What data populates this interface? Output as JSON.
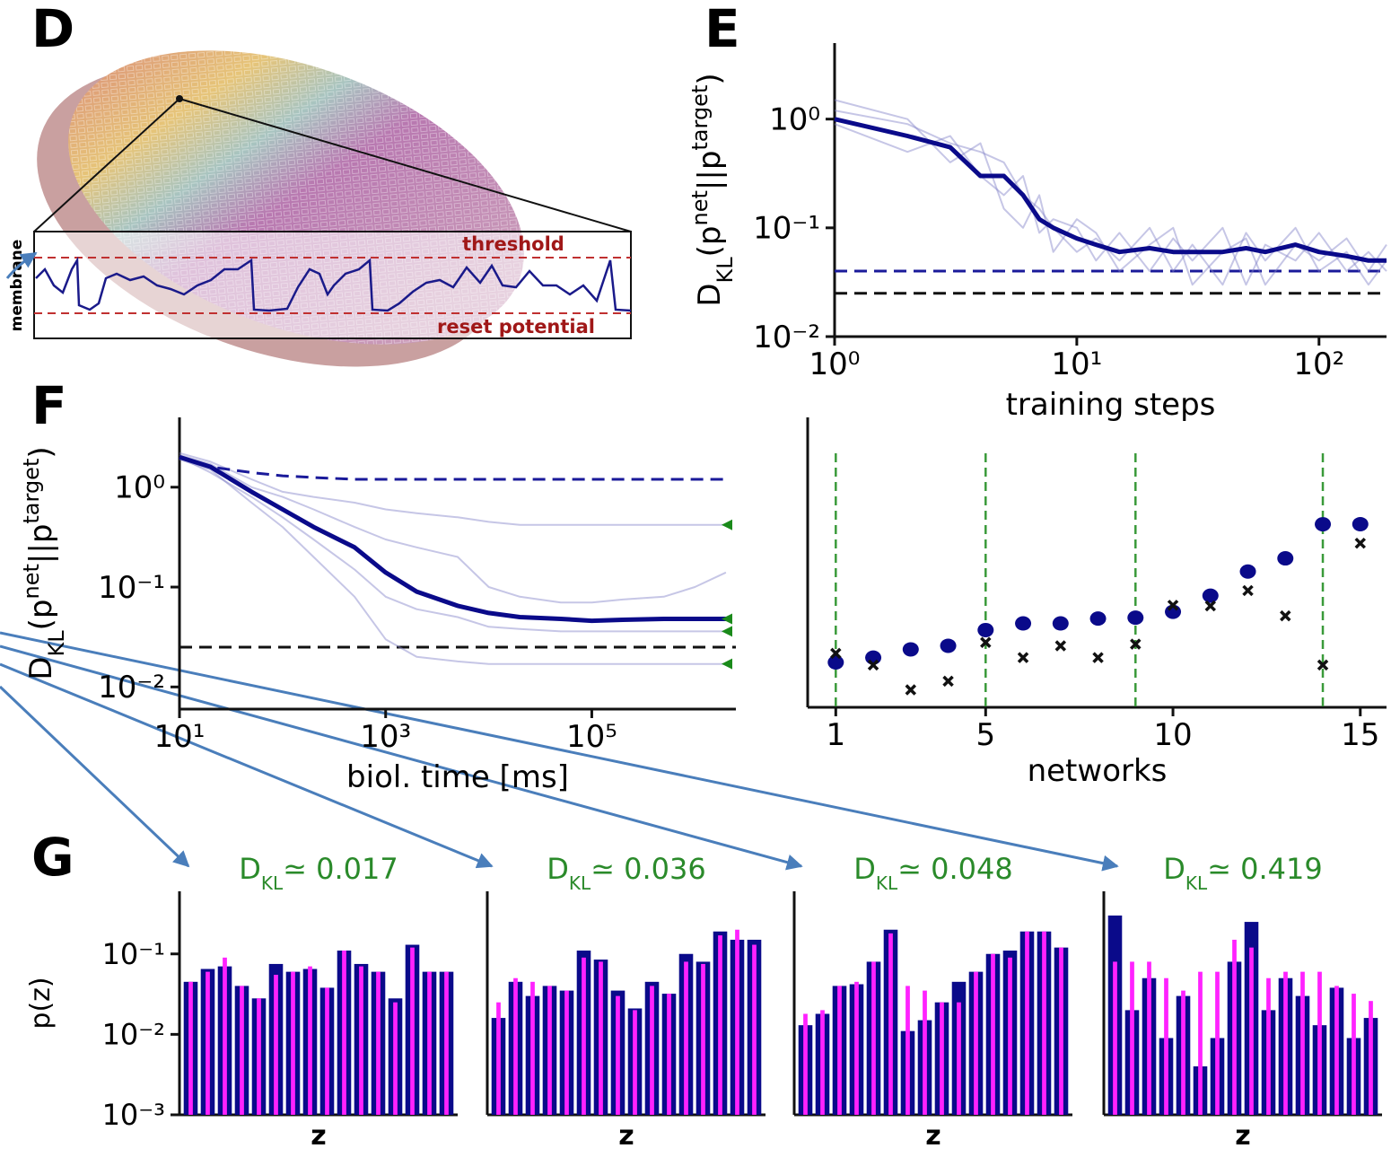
{
  "illustration": {
    "label": "D",
    "y_label": "membrane",
    "threshold_label": "threshold",
    "reset_label": "reset potential"
  },
  "chart_data": [
    {
      "type": "line",
      "panel_label": "E",
      "xlog": true,
      "ylog": true,
      "ylabel_parts": [
        "D",
        "KL",
        "(p",
        "net",
        "||p",
        "target",
        ")"
      ],
      "xlabel": "training steps",
      "xlim": [
        1,
        190
      ],
      "ylim": [
        0.01,
        5
      ],
      "xticks": [
        {
          "value": 1,
          "label": "10⁰"
        },
        {
          "value": 10,
          "label": "10¹"
        },
        {
          "value": 100,
          "label": "10²"
        }
      ],
      "yticks": [
        {
          "value": 1,
          "label": "10⁰"
        },
        {
          "value": 0.1,
          "label": "10⁻¹"
        },
        {
          "value": 0.01,
          "label": "10⁻²"
        }
      ],
      "x": [
        1,
        2,
        3,
        4,
        5,
        6,
        7,
        8,
        10,
        12,
        15,
        20,
        25,
        30,
        40,
        50,
        60,
        80,
        100,
        130,
        160,
        190
      ],
      "series": [
        {
          "color": "#8080c8",
          "style": "thin",
          "values": [
            1.2,
            0.9,
            0.6,
            0.5,
            0.4,
            0.2,
            0.15,
            0.1,
            0.06,
            0.08,
            0.05,
            0.1,
            0.04,
            0.07,
            0.03,
            0.09,
            0.05,
            0.1,
            0.04,
            0.06,
            0.03,
            0.05
          ]
        },
        {
          "color": "#8080c8",
          "style": "thin",
          "values": [
            0.9,
            0.5,
            0.7,
            0.3,
            0.2,
            0.3,
            0.09,
            0.12,
            0.1,
            0.05,
            0.09,
            0.04,
            0.08,
            0.05,
            0.1,
            0.03,
            0.07,
            0.05,
            0.09,
            0.04,
            0.06,
            0.04
          ]
        },
        {
          "color": "#8080c8",
          "style": "thin",
          "values": [
            1.5,
            1.0,
            0.4,
            0.6,
            0.15,
            0.1,
            0.2,
            0.06,
            0.12,
            0.09,
            0.04,
            0.07,
            0.1,
            0.03,
            0.06,
            0.08,
            0.03,
            0.07,
            0.05,
            0.08,
            0.04,
            0.07
          ]
        },
        {
          "color": "#0a0a8a",
          "style": "thick",
          "values": [
            1.0,
            0.7,
            0.55,
            0.3,
            0.3,
            0.2,
            0.12,
            0.1,
            0.08,
            0.07,
            0.06,
            0.065,
            0.06,
            0.06,
            0.06,
            0.065,
            0.06,
            0.07,
            0.06,
            0.055,
            0.05,
            0.05
          ]
        }
      ],
      "hlines": [
        {
          "value": 0.04,
          "color": "#1a1a9a",
          "linestyle": "dashed"
        },
        {
          "value": 0.025,
          "color": "#111111",
          "linestyle": "dashed"
        }
      ]
    },
    {
      "type": "line",
      "panel_label": "F",
      "xlog": true,
      "ylog": true,
      "ylabel_parts": [
        "D",
        "KL",
        "(p",
        "net",
        "||p",
        "target",
        ")"
      ],
      "xlabel": "biol. time [ms]",
      "xlim": [
        10,
        2500000
      ],
      "ylim": [
        0.006,
        5
      ],
      "xticks": [
        {
          "value": 10,
          "label": "10¹"
        },
        {
          "value": 1000,
          "label": "10³"
        },
        {
          "value": 100000,
          "label": "10⁵"
        }
      ],
      "yticks": [
        {
          "value": 1,
          "label": "10⁰"
        },
        {
          "value": 0.1,
          "label": "10⁻¹"
        },
        {
          "value": 0.01,
          "label": "10⁻²"
        }
      ],
      "x": [
        10,
        20,
        50,
        100,
        200,
        500,
        1000,
        2000,
        5000,
        10000,
        20000,
        50000,
        100000,
        200000,
        500000,
        1000000,
        2000000
      ],
      "series": [
        {
          "color": "#8080c8",
          "style": "thin",
          "values": [
            2.2,
            1.8,
            1.2,
            0.9,
            0.8,
            0.7,
            0.6,
            0.55,
            0.5,
            0.45,
            0.42,
            0.42,
            0.42,
            0.42,
            0.42,
            0.42,
            0.42
          ]
        },
        {
          "color": "#8080c8",
          "style": "thin",
          "values": [
            1.9,
            1.5,
            0.7,
            0.4,
            0.2,
            0.08,
            0.03,
            0.02,
            0.018,
            0.017,
            0.017,
            0.017,
            0.017,
            0.017,
            0.017,
            0.017,
            0.017
          ]
        },
        {
          "color": "#8080c8",
          "style": "thin",
          "values": [
            2,
            1.4,
            0.8,
            0.5,
            0.3,
            0.15,
            0.08,
            0.06,
            0.05,
            0.04,
            0.038,
            0.036,
            0.036,
            0.036,
            0.036,
            0.036,
            0.036
          ]
        },
        {
          "color": "#8080c8",
          "style": "thin",
          "values": [
            2.1,
            1.7,
            1.0,
            0.8,
            0.6,
            0.4,
            0.3,
            0.25,
            0.2,
            0.1,
            0.08,
            0.07,
            0.07,
            0.075,
            0.08,
            0.1,
            0.14
          ]
        },
        {
          "color": "#1a1a9a",
          "style": "dashed",
          "values": [
            2,
            1.6,
            1.4,
            1.3,
            1.25,
            1.2,
            1.2,
            1.2,
            1.2,
            1.2,
            1.2,
            1.2,
            1.2,
            1.2,
            1.2,
            1.2,
            1.2
          ]
        },
        {
          "color": "#0a0a8a",
          "style": "thick",
          "values": [
            2,
            1.6,
            0.9,
            0.6,
            0.4,
            0.25,
            0.14,
            0.09,
            0.065,
            0.055,
            0.05,
            0.048,
            0.046,
            0.047,
            0.048,
            0.048,
            0.048
          ]
        }
      ],
      "hlines": [
        {
          "value": 0.025,
          "color": "#111111",
          "linestyle": "dashed"
        }
      ],
      "markers": {
        "color": "#1a8a1a",
        "values": [
          0.419,
          0.048,
          0.036,
          0.017
        ]
      }
    },
    {
      "type": "scatter",
      "ylog": true,
      "xlabel": "networks",
      "xlim": [
        0.25,
        15.7
      ],
      "ylim": [
        0.006,
        5
      ],
      "xticks": [
        1,
        5,
        10,
        15
      ],
      "vlines": [
        1,
        5,
        9,
        14
      ],
      "vline_color": "#3a9a3a",
      "x": [
        1,
        2,
        3,
        4,
        5,
        6,
        7,
        8,
        9,
        10,
        11,
        12,
        13,
        14,
        15
      ],
      "series": [
        {
          "marker": "circle",
          "color": "#0a0a8a",
          "values": [
            0.017,
            0.019,
            0.023,
            0.025,
            0.036,
            0.042,
            0.042,
            0.047,
            0.048,
            0.055,
            0.08,
            0.14,
            0.19,
            0.419,
            0.42
          ]
        },
        {
          "marker": "x",
          "color": "#111111",
          "values": [
            0.021,
            0.016,
            0.009,
            0.011,
            0.027,
            0.019,
            0.025,
            0.019,
            0.026,
            0.064,
            0.063,
            0.09,
            0.05,
            0.016,
            0.27
          ]
        }
      ]
    },
    {
      "type": "bar",
      "panel_label": "G",
      "ylog": true,
      "title_parts": [
        "D",
        "KL",
        "≃  0.017"
      ],
      "xlabel": "z",
      "ylabel": "p(z)",
      "ylim": [
        0.001,
        0.6
      ],
      "yticks": [
        {
          "value": 0.1,
          "label": "10⁻¹"
        },
        {
          "value": 0.01,
          "label": "10⁻²"
        },
        {
          "value": 0.001,
          "label": "10⁻³"
        }
      ],
      "series": [
        {
          "color": "#0a0a8a",
          "values": [
            0.045,
            0.065,
            0.07,
            0.04,
            0.028,
            0.075,
            0.06,
            0.065,
            0.038,
            0.11,
            0.075,
            0.06,
            0.028,
            0.13,
            0.06,
            0.06
          ]
        },
        {
          "color": "#ff22ff",
          "values": [
            0.045,
            0.06,
            0.09,
            0.04,
            0.028,
            0.055,
            0.06,
            0.07,
            0.038,
            0.11,
            0.07,
            0.06,
            0.025,
            0.12,
            0.06,
            0.06
          ]
        }
      ]
    },
    {
      "type": "bar",
      "ylog": true,
      "title_parts": [
        "D",
        "KL",
        "≃  0.036"
      ],
      "xlabel": "z",
      "ylim": [
        0.001,
        0.6
      ],
      "series": [
        {
          "color": "#0a0a8a",
          "values": [
            0.016,
            0.045,
            0.03,
            0.04,
            0.035,
            0.11,
            0.085,
            0.035,
            0.021,
            0.045,
            0.032,
            0.1,
            0.08,
            0.19,
            0.15,
            0.15
          ]
        },
        {
          "color": "#ff22ff",
          "values": [
            0.025,
            0.05,
            0.045,
            0.04,
            0.035,
            0.09,
            0.08,
            0.03,
            0.02,
            0.04,
            0.032,
            0.08,
            0.075,
            0.17,
            0.2,
            0.13
          ]
        }
      ]
    },
    {
      "type": "bar",
      "ylog": true,
      "title_parts": [
        "D",
        "KL",
        "≃  0.048"
      ],
      "xlabel": "z",
      "ylim": [
        0.001,
        0.6
      ],
      "series": [
        {
          "color": "#0a0a8a",
          "values": [
            0.013,
            0.018,
            0.04,
            0.042,
            0.08,
            0.2,
            0.011,
            0.015,
            0.025,
            0.045,
            0.06,
            0.1,
            0.11,
            0.19,
            0.19,
            0.12
          ]
        },
        {
          "color": "#ff22ff",
          "values": [
            0.018,
            0.02,
            0.04,
            0.045,
            0.08,
            0.18,
            0.04,
            0.035,
            0.025,
            0.025,
            0.06,
            0.1,
            0.09,
            0.19,
            0.19,
            0.12
          ]
        }
      ]
    },
    {
      "type": "bar",
      "ylog": true,
      "title_parts": [
        "D",
        "KL",
        "≃  0.419"
      ],
      "xlabel": "z",
      "ylim": [
        0.001,
        0.6
      ],
      "series": [
        {
          "color": "#0a0a8a",
          "values": [
            0.3,
            0.02,
            0.05,
            0.009,
            0.03,
            0.004,
            0.009,
            0.08,
            0.25,
            0.02,
            0.05,
            0.03,
            0.013,
            0.038,
            0.009,
            0.016
          ]
        },
        {
          "color": "#ff22ff",
          "values": [
            0.08,
            0.08,
            0.08,
            0.05,
            0.035,
            0.06,
            0.06,
            0.15,
            0.12,
            0.05,
            0.06,
            0.06,
            0.06,
            0.04,
            0.032,
            0.026
          ]
        }
      ]
    }
  ]
}
